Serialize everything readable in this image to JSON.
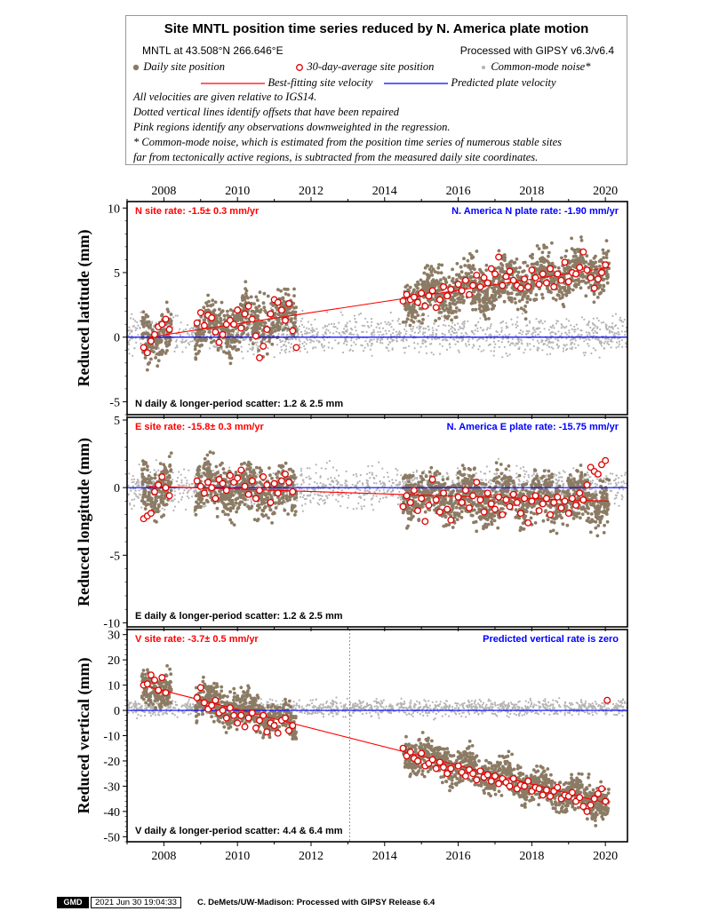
{
  "legend": {
    "title": "Site MNTL position time series reduced by N. America plate motion",
    "site_line": "MNTL at 43.508°N 266.646°E",
    "processed": "Processed with GIPSY v6.3/v6.4",
    "daily": "Daily site position",
    "avg30": "30-day-average site position",
    "common_mode": "Common-mode noise*",
    "best_fit": "Best-fitting site velocity",
    "predicted": "Predicted plate velocity",
    "notes": [
      "All velocities are given relative to IGS14.",
      "Dotted vertical lines identify offsets that have been repaired",
      "Pink regions identify any observations downweighted in the regression.",
      "* Common-mode noise, which is estimated from the position time series of numerous stable sites",
      "far from tectonically active regions, is subtracted from the measured daily site coordinates."
    ]
  },
  "footer": {
    "logo": "GMD",
    "timestamp": "2021 Jun 30 19:04:33",
    "credit": "C. DeMets/UW-Madison: Processed with GIPSY Release 6.4"
  },
  "colors": {
    "daily": "#8c7b64",
    "avg_fill": "#ffffff",
    "avg_edge": "#e00000",
    "fit": "#ff0000",
    "plate": "#0000ff",
    "noise": "#b4b4b4",
    "offset": "#808080"
  },
  "chart_data": [
    {
      "type": "scatter",
      "ylabel": "Reduced latitude (mm)",
      "xlim": [
        2007.0,
        2020.6
      ],
      "ylim": [
        -6.0,
        10.5
      ],
      "yticks": [
        -5,
        0,
        5,
        10
      ],
      "xticks": [
        2008,
        2010,
        2012,
        2014,
        2016,
        2018,
        2020
      ],
      "xtick_labels_top": [
        "2008",
        "2010",
        "2012",
        "2014",
        "2016",
        "2018",
        "2020"
      ],
      "site_rate_label": "N site rate:  -1.5± 0.3 mm/yr",
      "plate_rate_label": "N. America N plate rate: -1.90 mm/yr",
      "scatter_label": "N daily & longer-period scatter:   1.2 &   2.5 mm",
      "fit_line": {
        "x": [
          2007.6,
          2020.1
        ],
        "y": [
          0.0,
          5.4
        ]
      },
      "plate_line": {
        "y": 0
      },
      "offsets": [],
      "series": [
        {
          "name": "30-day-average site position",
          "x": [
            2007.45,
            2007.55,
            2007.65,
            2007.75,
            2007.85,
            2007.95,
            2008.05,
            2008.15,
            2008.9,
            2009.0,
            2009.1,
            2009.2,
            2009.3,
            2009.4,
            2009.5,
            2009.6,
            2009.7,
            2009.8,
            2009.9,
            2010.0,
            2010.1,
            2010.2,
            2010.3,
            2010.4,
            2010.5,
            2010.6,
            2010.7,
            2010.8,
            2010.9,
            2011.0,
            2011.1,
            2011.2,
            2011.3,
            2011.4,
            2011.5,
            2011.6,
            2014.5,
            2014.6,
            2014.7,
            2014.8,
            2014.9,
            2015.0,
            2015.1,
            2015.2,
            2015.3,
            2015.4,
            2015.5,
            2015.6,
            2015.7,
            2015.8,
            2016.0,
            2016.1,
            2016.2,
            2016.3,
            2016.4,
            2016.5,
            2016.6,
            2016.7,
            2016.8,
            2016.9,
            2017.0,
            2017.1,
            2017.2,
            2017.3,
            2017.4,
            2017.5,
            2017.6,
            2017.7,
            2017.8,
            2017.9,
            2018.0,
            2018.1,
            2018.2,
            2018.3,
            2018.4,
            2018.5,
            2018.6,
            2018.7,
            2018.8,
            2018.9,
            2019.0,
            2019.1,
            2019.2,
            2019.3,
            2019.4,
            2019.5,
            2019.6,
            2019.7,
            2019.8,
            2019.9,
            2020.0
          ],
          "y": [
            -0.8,
            -1.2,
            -0.3,
            0.2,
            0.8,
            1.0,
            1.4,
            0.6,
            1.1,
            1.9,
            0.9,
            1.7,
            1.5,
            0.4,
            -0.4,
            0.2,
            1.0,
            1.3,
            1.0,
            2.1,
            0.7,
            1.8,
            2.4,
            1.4,
            0.1,
            -1.6,
            -0.7,
            0.6,
            1.8,
            2.9,
            2.7,
            2.1,
            1.3,
            2.6,
            0.5,
            -0.8,
            2.8,
            3.3,
            2.9,
            3.1,
            2.7,
            3.4,
            2.4,
            3.2,
            3.6,
            2.3,
            2.9,
            3.9,
            3.2,
            3.7,
            4.1,
            3.6,
            4.4,
            3.3,
            4.0,
            4.8,
            3.9,
            4.6,
            4.2,
            5.3,
            4.9,
            6.2,
            4.0,
            4.7,
            5.1,
            4.4,
            4.0,
            3.8,
            4.5,
            3.9,
            5.2,
            4.6,
            4.1,
            4.9,
            4.2,
            5.3,
            3.9,
            4.9,
            4.4,
            5.8,
            4.3,
            5.0,
            4.9,
            5.4,
            6.6,
            5.2,
            4.6,
            3.8,
            4.5,
            5.0,
            5.6
          ]
        },
        {
          "name": "Daily site position",
          "segments": [
            [
              2007.4,
              2008.2
            ],
            [
              2008.85,
              2011.6
            ],
            [
              2014.5,
              2020.1
            ]
          ],
          "rate": -1.5,
          "scatter": 1.2
        },
        {
          "name": "Common-mode noise*",
          "x_range": [
            2007.0,
            2020.6
          ],
          "center": 0.2,
          "scatter": 1.0
        }
      ]
    },
    {
      "type": "scatter",
      "ylabel": "Reduced longitude (mm)",
      "xlim": [
        2007.0,
        2020.6
      ],
      "ylim": [
        -10.3,
        5.2
      ],
      "yticks": [
        -10,
        -5,
        0,
        5
      ],
      "xticks": [
        2008,
        2010,
        2012,
        2014,
        2016,
        2018,
        2020
      ],
      "site_rate_label": "E site rate:  -15.8± 0.3 mm/yr",
      "plate_rate_label": "N. America E plate rate: -15.75 mm/yr",
      "scatter_label": "E daily & longer-period scatter:   1.2 &   2.5 mm",
      "fit_line": {
        "x": [
          2007.6,
          2020.1
        ],
        "y": [
          0.1,
          -1.0
        ]
      },
      "plate_line": {
        "y": 0
      },
      "offsets": [],
      "series": [
        {
          "name": "30-day-average site position",
          "x": [
            2007.45,
            2007.55,
            2007.65,
            2007.75,
            2007.85,
            2007.95,
            2008.05,
            2008.15,
            2008.9,
            2009.0,
            2009.1,
            2009.2,
            2009.3,
            2009.4,
            2009.5,
            2009.6,
            2009.7,
            2009.8,
            2009.9,
            2010.0,
            2010.1,
            2010.2,
            2010.3,
            2010.4,
            2010.5,
            2010.6,
            2010.7,
            2010.8,
            2010.9,
            2011.0,
            2011.1,
            2011.2,
            2011.3,
            2011.4,
            2011.5,
            2014.5,
            2014.6,
            2014.7,
            2014.8,
            2014.9,
            2015.0,
            2015.1,
            2015.2,
            2015.3,
            2015.4,
            2015.5,
            2015.6,
            2015.7,
            2015.8,
            2016.0,
            2016.1,
            2016.2,
            2016.3,
            2016.4,
            2016.5,
            2016.6,
            2016.7,
            2016.8,
            2016.9,
            2017.0,
            2017.1,
            2017.2,
            2017.3,
            2017.4,
            2017.5,
            2017.6,
            2017.7,
            2017.8,
            2017.9,
            2018.0,
            2018.1,
            2018.2,
            2018.3,
            2018.4,
            2018.5,
            2018.6,
            2018.7,
            2018.8,
            2018.9,
            2019.0,
            2019.1,
            2019.2,
            2019.3,
            2019.4,
            2019.5,
            2019.6,
            2019.7,
            2019.8,
            2019.9,
            2020.0
          ],
          "y": [
            -2.3,
            -2.1,
            -1.9,
            -0.3,
            0.2,
            0.8,
            0.0,
            -0.6,
            0.5,
            0.1,
            -0.4,
            0.4,
            0.0,
            -0.8,
            0.6,
            0.3,
            -0.2,
            0.9,
            0.4,
            0.7,
            1.3,
            0.1,
            -0.5,
            0.5,
            -0.8,
            -0.2,
            0.8,
            0.2,
            -1.1,
            0.3,
            -0.4,
            0.5,
            1.0,
            0.4,
            -0.3,
            -1.4,
            -0.6,
            -1.1,
            -0.2,
            -1.7,
            -0.8,
            -2.5,
            -1.3,
            0.6,
            -0.9,
            -1.8,
            -0.4,
            -1.6,
            -2.4,
            -0.7,
            -1.1,
            -0.2,
            -1.5,
            -0.6,
            0.4,
            -0.9,
            -1.8,
            -0.4,
            -1.2,
            -1.6,
            -0.7,
            -2.0,
            -0.9,
            -1.4,
            -0.5,
            -1.1,
            -1.9,
            -0.8,
            -2.6,
            -1.0,
            -0.6,
            -1.7,
            -1.2,
            -0.8,
            -2.0,
            -1.1,
            -0.7,
            -1.5,
            -1.0,
            -1.9,
            -0.8,
            -1.3,
            -0.4,
            -0.9,
            0.2,
            1.5,
            1.2,
            1.0,
            1.7,
            2.0
          ]
        },
        {
          "name": "Daily site position",
          "segments": [
            [
              2007.4,
              2008.2
            ],
            [
              2008.85,
              2011.6
            ],
            [
              2014.5,
              2020.1
            ]
          ],
          "rate": -0.1,
          "scatter": 1.2
        },
        {
          "name": "Common-mode noise*",
          "x_range": [
            2007.0,
            2020.6
          ],
          "center": 0.0,
          "scatter": 1.0
        }
      ]
    },
    {
      "type": "scatter",
      "ylabel": "Reduced vertical (mm)",
      "xlim": [
        2007.0,
        2020.6
      ],
      "ylim": [
        -52.0,
        32.0
      ],
      "yticks": [
        -50,
        -40,
        -30,
        -20,
        -10,
        0,
        10,
        20,
        30
      ],
      "xticks": [
        2008,
        2010,
        2012,
        2014,
        2016,
        2018,
        2020
      ],
      "xtick_labels_bottom": [
        "2008",
        "2010",
        "2012",
        "2014",
        "2016",
        "2018",
        "2020"
      ],
      "site_rate_label": "V site rate:  -3.7± 0.5 mm/yr",
      "plate_rate_label": "Predicted vertical rate is zero",
      "scatter_label": "V daily & longer-period scatter:   4.4 &   6.4 mm",
      "fit_line": {
        "x": [
          2007.4,
          2020.1
        ],
        "y": [
          10.0,
          -37.0
        ]
      },
      "plate_line": {
        "y": 0
      },
      "offsets": [
        2013.05
      ],
      "series": [
        {
          "name": "30-day-average site position",
          "x": [
            2007.45,
            2007.55,
            2007.65,
            2007.75,
            2007.85,
            2007.95,
            2008.05,
            2008.9,
            2009.0,
            2009.1,
            2009.2,
            2009.3,
            2009.4,
            2009.5,
            2009.6,
            2009.7,
            2009.8,
            2009.9,
            2010.0,
            2010.1,
            2010.2,
            2010.3,
            2010.4,
            2010.5,
            2010.6,
            2010.7,
            2010.8,
            2010.9,
            2011.0,
            2011.1,
            2011.2,
            2011.3,
            2011.4,
            2011.5,
            2014.5,
            2014.6,
            2014.7,
            2014.8,
            2014.9,
            2015.0,
            2015.1,
            2015.2,
            2015.3,
            2015.4,
            2015.5,
            2015.6,
            2015.7,
            2015.8,
            2016.0,
            2016.1,
            2016.2,
            2016.3,
            2016.4,
            2016.5,
            2016.6,
            2016.7,
            2016.8,
            2016.9,
            2017.0,
            2017.1,
            2017.2,
            2017.3,
            2017.4,
            2017.5,
            2017.6,
            2017.7,
            2017.8,
            2017.9,
            2018.0,
            2018.1,
            2018.2,
            2018.3,
            2018.4,
            2018.5,
            2018.6,
            2018.7,
            2018.8,
            2018.9,
            2019.0,
            2019.1,
            2019.2,
            2019.3,
            2019.4,
            2019.5,
            2019.6,
            2019.7,
            2019.8,
            2019.9,
            2020.0,
            2020.05
          ],
          "y": [
            10.0,
            10.5,
            14.0,
            12.0,
            8.0,
            13.0,
            7.0,
            5.0,
            9.0,
            3.0,
            0.5,
            2.0,
            4.0,
            -1.0,
            0.0,
            -3.0,
            1.0,
            -2.0,
            -5.0,
            -2.0,
            -6.5,
            -3.0,
            -1.0,
            -7.0,
            -4.0,
            -2.0,
            -8.5,
            -5.0,
            -6.0,
            -9.0,
            -4.0,
            -3.0,
            -8.0,
            -6.0,
            -15.0,
            -18.0,
            -16.5,
            -19.0,
            -20.0,
            -17.0,
            -22.0,
            -21.0,
            -19.5,
            -23.0,
            -20.5,
            -22.5,
            -25.0,
            -23.0,
            -22.0,
            -24.5,
            -26.0,
            -23.5,
            -25.0,
            -27.5,
            -24.0,
            -26.5,
            -25.5,
            -28.0,
            -26.0,
            -29.0,
            -27.0,
            -28.5,
            -30.0,
            -27.0,
            -31.0,
            -29.5,
            -30.0,
            -28.0,
            -32.0,
            -30.5,
            -31.0,
            -33.5,
            -31.5,
            -34.0,
            -32.0,
            -30.5,
            -35.0,
            -33.5,
            -34.0,
            -32.5,
            -36.0,
            -34.5,
            -38.0,
            -40.0,
            -37.5,
            -35.0,
            -33.0,
            -31.0,
            -36.0,
            4.0
          ]
        },
        {
          "name": "Daily site position",
          "segments": [
            [
              2007.4,
              2008.2
            ],
            [
              2008.85,
              2011.6
            ],
            [
              2014.5,
              2020.1
            ]
          ],
          "rate": -3.7,
          "scatter": 4.4
        },
        {
          "name": "Common-mode noise*",
          "x_range": [
            2007.0,
            2020.6
          ],
          "center": 1.0,
          "scatter": 2.2
        }
      ]
    }
  ]
}
